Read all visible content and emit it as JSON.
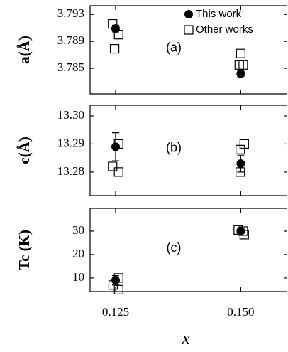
{
  "chart_data": [
    {
      "type": "scatter",
      "y_label": "a(Å)",
      "annotation": "(a)",
      "legend": "upper right",
      "xlim": [
        0.1199,
        0.1593
      ],
      "ylim": [
        3.7812,
        3.7943
      ],
      "yticks": [
        3.793,
        3.789,
        3.785
      ],
      "series": [
        {
          "name": "This work",
          "color": "#000000",
          "marker": "circle",
          "filled": true,
          "x": [
            0.125,
            0.15
          ],
          "values": [
            3.7909,
            3.7842
          ],
          "errors": [
            0.0005,
            0.0004
          ]
        },
        {
          "name": "Other works",
          "color": "#000000",
          "marker": "square",
          "filled": false,
          "x": [
            0.1244,
            0.1256,
            0.1248,
            0.15,
            0.1497,
            0.1505
          ],
          "values": [
            3.7916,
            3.79,
            3.7879,
            3.7872,
            3.7855,
            3.7855
          ]
        }
      ]
    },
    {
      "type": "scatter",
      "y_label": "c(Å)",
      "annotation": "(b)",
      "xlim": [
        0.1199,
        0.1593
      ],
      "ylim": [
        13.2716,
        13.3038
      ],
      "yticks": [
        {
          "value": 13.3,
          "label": "13.30"
        },
        13.29,
        13.28
      ],
      "series": [
        {
          "name": "This work",
          "color": "#000000",
          "marker": "circle",
          "filled": true,
          "x": [
            0.125,
            0.15
          ],
          "values": [
            13.289,
            13.283
          ],
          "errors": [
            0.005,
            0.003
          ]
        },
        {
          "name": "Other works",
          "color": "#000000",
          "marker": "square",
          "filled": false,
          "x": [
            0.1256,
            0.1244,
            0.1256,
            0.1499,
            0.1507,
            0.1499
          ],
          "values": [
            13.29,
            13.282,
            13.28,
            13.288,
            13.29,
            13.28
          ]
        }
      ]
    },
    {
      "type": "scatter",
      "y_label": "Tc (K)",
      "annotation": "(c)",
      "x_label": "x",
      "xlim": [
        0.1199,
        0.1593
      ],
      "ylim": [
        4.2,
        39.7
      ],
      "xticks": [
        0.125,
        {
          "value": 0.15,
          "label": "0.150"
        }
      ],
      "yticks": [
        30,
        20,
        10
      ],
      "series": [
        {
          "name": "This work",
          "color": "#000000",
          "marker": "circle",
          "filled": true,
          "x": [
            0.125,
            0.15
          ],
          "values": [
            9,
            30
          ],
          "errors": [
            2,
            1
          ]
        },
        {
          "name": "Other works",
          "color": "#000000",
          "marker": "square",
          "filled": false,
          "x": [
            0.1256,
            0.1245,
            0.1256,
            0.1495,
            0.1505,
            0.1507
          ],
          "values": [
            10,
            7,
            5,
            30.5,
            30,
            28.5
          ]
        }
      ]
    }
  ]
}
